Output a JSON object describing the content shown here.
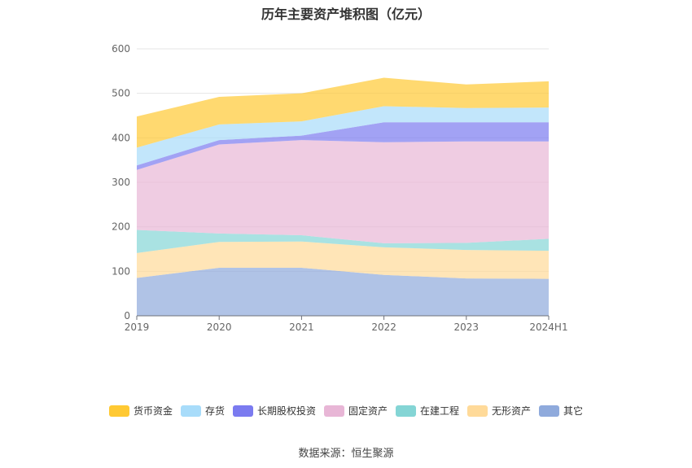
{
  "chart_data": {
    "type": "area",
    "stacked": true,
    "title": "历年主要资产堆积图（亿元）",
    "x": [
      "2019",
      "2020",
      "2021",
      "2022",
      "2023",
      "2024H1"
    ],
    "ylim": [
      0,
      600
    ],
    "yticks": [
      0,
      100,
      200,
      300,
      400,
      500,
      600
    ],
    "grid": true,
    "legend_position": "bottom",
    "series": [
      {
        "name": "其它",
        "color": "#8FAADC",
        "values": [
          85,
          108,
          108,
          92,
          84,
          83
        ]
      },
      {
        "name": "无形资产",
        "color": "#FFDA99",
        "values": [
          56,
          58,
          59,
          62,
          64,
          63
        ]
      },
      {
        "name": "在建工程",
        "color": "#84D5D5",
        "values": [
          52,
          19,
          14,
          9,
          16,
          27
        ]
      },
      {
        "name": "固定资产",
        "color": "#E8B6D6",
        "values": [
          135,
          200,
          214,
          227,
          228,
          219
        ]
      },
      {
        "name": "长期股权投资",
        "color": "#7B7BF0",
        "values": [
          10,
          10,
          10,
          45,
          43,
          43
        ]
      },
      {
        "name": "存货",
        "color": "#A8DCFA",
        "values": [
          40,
          35,
          32,
          36,
          32,
          33
        ]
      },
      {
        "name": "货币资金",
        "color": "#FFC933",
        "values": [
          70,
          62,
          63,
          64,
          53,
          59
        ]
      }
    ],
    "legend_order": [
      "货币资金",
      "存货",
      "长期股权投资",
      "固定资产",
      "在建工程",
      "无形资产",
      "其它"
    ]
  },
  "source": "数据来源：恒生聚源"
}
